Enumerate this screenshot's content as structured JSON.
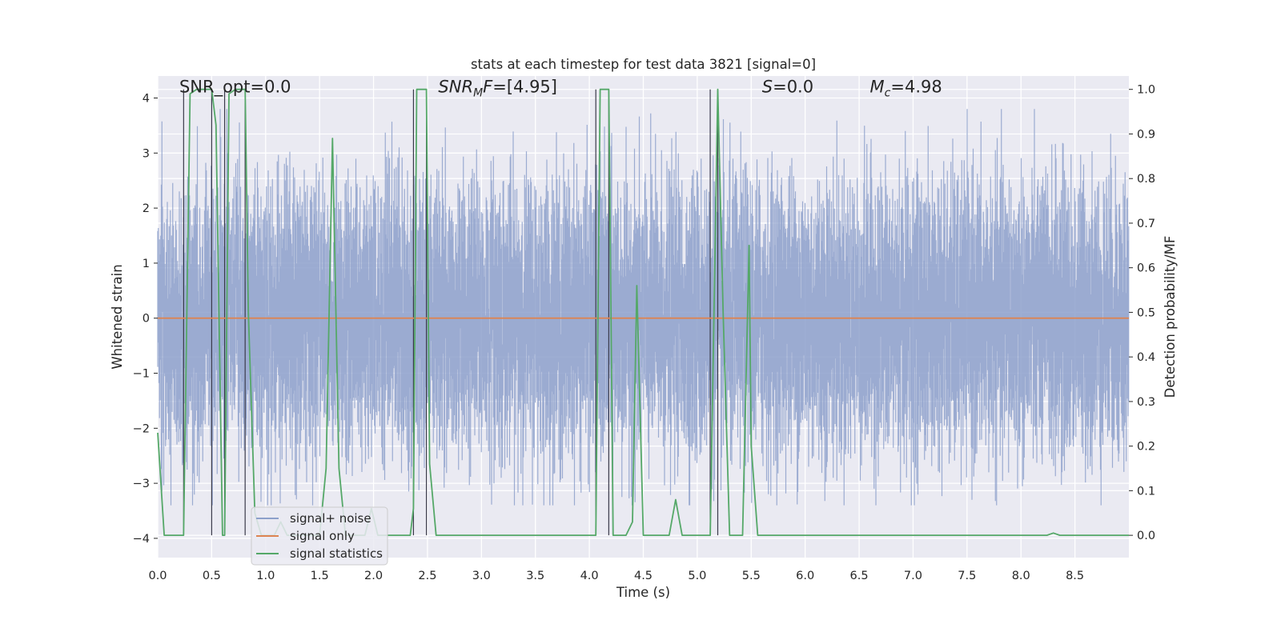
{
  "chart_data": {
    "type": "line",
    "title": "stats at each timestep for test data 3821 [signal=0]",
    "xlabel": "Time (s)",
    "ylabel": "Whitened strain",
    "y2label": "Detection probability/MF",
    "xlim": [
      0.0,
      9.0
    ],
    "ylim": [
      -4.35,
      4.4
    ],
    "y2lim": [
      -0.05,
      1.03
    ],
    "xticks": [
      0.0,
      0.5,
      1.0,
      1.5,
      2.0,
      2.5,
      3.0,
      3.5,
      4.0,
      4.5,
      5.0,
      5.5,
      6.0,
      6.5,
      7.0,
      7.5,
      8.0,
      8.5
    ],
    "xtick_labels": [
      "0.0",
      "0.5",
      "1.0",
      "1.5",
      "2.0",
      "2.5",
      "3.0",
      "3.5",
      "4.0",
      "4.5",
      "5.0",
      "5.5",
      "6.0",
      "6.5",
      "7.0",
      "7.5",
      "8.0",
      "8.5"
    ],
    "yticks": [
      4,
      3,
      2,
      1,
      0,
      -1,
      -2,
      -3,
      -4
    ],
    "ytick_labels": [
      "4",
      "3",
      "2",
      "1",
      "0",
      "−1",
      "−2",
      "−3",
      "−4"
    ],
    "y2ticks": [
      1.0,
      0.9,
      0.8,
      0.7,
      0.6,
      0.5,
      0.4,
      0.3,
      0.2,
      0.1,
      0.0
    ],
    "y2tick_labels": [
      "1.0",
      "0.9",
      "0.8",
      "0.7",
      "0.6",
      "0.5",
      "0.4",
      "0.3",
      "0.2",
      "0.1",
      "0.0"
    ],
    "grid": true,
    "legend_position": "lower-left",
    "annotations": [
      {
        "text": "SNR_opt=0.0",
        "x": 0.2,
        "y": 4.1
      },
      {
        "text": "SNR_MF=[4.95]",
        "x": 2.6,
        "y": 4.1
      },
      {
        "text": "S=0.0",
        "x": 5.6,
        "y": 4.1
      },
      {
        "text": "M_c=4.98",
        "x": 6.6,
        "y": 4.1
      }
    ],
    "vertical_markers": [
      0.24,
      0.5,
      0.62,
      0.81,
      2.37,
      2.49,
      4.06,
      4.18,
      5.12,
      5.19
    ],
    "series": [
      {
        "name": "signal+ noise",
        "color": "#8da0cb",
        "axis": "left",
        "kind": "dense-noise",
        "sigma": 0.95,
        "peak_max": 3.8,
        "peak_min": -3.4
      },
      {
        "name": "signal only",
        "color": "#dd8452",
        "axis": "left",
        "x": [
          0.0,
          9.0
        ],
        "y": [
          0.0,
          0.0
        ]
      },
      {
        "name": "signal statistics",
        "color": "#55a868",
        "axis": "right",
        "x": [
          0.0,
          0.06,
          0.12,
          0.18,
          0.24,
          0.3,
          0.36,
          0.42,
          0.48,
          0.5,
          0.54,
          0.6,
          0.62,
          0.66,
          0.72,
          0.78,
          0.81,
          0.84,
          0.9,
          0.96,
          1.02,
          1.08,
          1.14,
          1.2,
          1.26,
          1.32,
          1.38,
          1.44,
          1.5,
          1.56,
          1.62,
          1.68,
          1.74,
          1.8,
          1.86,
          1.92,
          1.98,
          2.04,
          2.1,
          2.16,
          2.22,
          2.28,
          2.34,
          2.37,
          2.4,
          2.46,
          2.49,
          2.52,
          2.58,
          2.64,
          2.7,
          3.0,
          3.5,
          4.0,
          4.06,
          4.1,
          4.15,
          4.18,
          4.22,
          4.28,
          4.34,
          4.4,
          4.44,
          4.5,
          4.56,
          4.62,
          4.68,
          4.74,
          4.8,
          4.86,
          4.92,
          4.98,
          5.04,
          5.1,
          5.12,
          5.19,
          5.24,
          5.3,
          5.36,
          5.42,
          5.48,
          5.5,
          5.56,
          5.62,
          5.7,
          6.0,
          6.5,
          7.0,
          7.5,
          8.0,
          8.24,
          8.3,
          8.36,
          8.5,
          9.0
        ],
        "y": [
          0.23,
          0.0,
          0.0,
          0.0,
          0.0,
          0.99,
          1.0,
          1.0,
          1.0,
          1.0,
          0.92,
          0.0,
          0.0,
          0.99,
          1.0,
          1.0,
          1.0,
          0.5,
          0.05,
          0.0,
          0.0,
          0.0,
          0.03,
          0.0,
          0.0,
          0.0,
          0.0,
          0.0,
          0.0,
          0.15,
          0.89,
          0.15,
          0.0,
          0.0,
          0.0,
          0.0,
          0.06,
          0.0,
          0.0,
          0.0,
          0.0,
          0.0,
          0.0,
          0.06,
          1.0,
          1.0,
          1.0,
          0.16,
          0.0,
          0.0,
          0.0,
          0.0,
          0.0,
          0.0,
          0.0,
          1.0,
          1.0,
          1.0,
          0.0,
          0.0,
          0.0,
          0.03,
          0.56,
          0.0,
          0.0,
          0.0,
          0.0,
          0.0,
          0.08,
          0.0,
          0.0,
          0.0,
          0.0,
          0.0,
          0.0,
          1.0,
          0.5,
          0.0,
          0.0,
          0.0,
          0.65,
          0.2,
          0.0,
          0.0,
          0.0,
          0.0,
          0.0,
          0.0,
          0.0,
          0.0,
          0.0,
          0.005,
          0.0,
          0.0,
          0.0
        ]
      }
    ],
    "legend": [
      "signal+ noise",
      "signal only",
      "signal statistics"
    ]
  }
}
